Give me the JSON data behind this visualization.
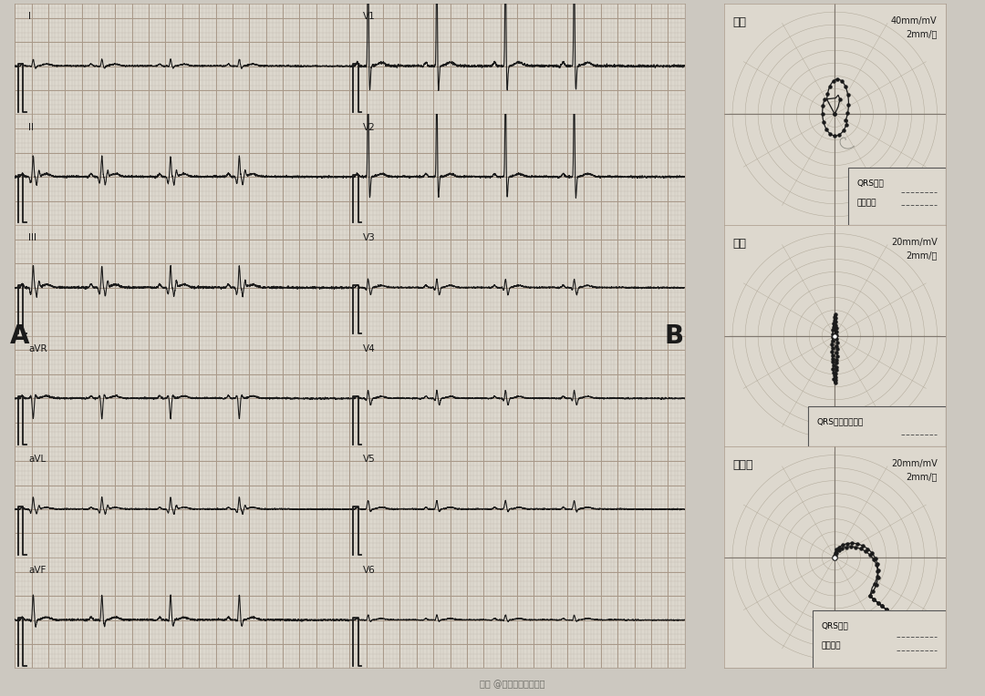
{
  "bg_color": "#d8d4cc",
  "ecg_bg": "#e8e4dc",
  "vcg_bg": "#e4e0d8",
  "grid_major_color": "#b8a898",
  "grid_minor_color": "#d4cdc5",
  "ecg_line_color": "#1a1a1a",
  "ecg_line_color2": "#666666",
  "vcg_line_color": "#1a1a1a",
  "lead_labels": [
    "I",
    "II",
    "III",
    "aVR",
    "aVL",
    "aVF"
  ],
  "chest_labels": [
    "V1",
    "V2",
    "V3",
    "V4",
    "V5",
    "V6"
  ],
  "panel_A_label": "A",
  "panel_B_label": "B",
  "vcg_panels": [
    {
      "title": "额面",
      "scale": "40mm/mV\n2mm/点"
    },
    {
      "title": "横面",
      "scale": "20mm/mV\n2mm/点"
    },
    {
      "title": "右俧面",
      "scale": "20mm/mV\n2mm/点"
    }
  ],
  "qrs_label1": "QRS环起",
  "qrs_label2": "始和终末",
  "qrs_label_h": "QRS环起始和终末",
  "qrs_label3a": "QRS环起",
  "qrs_label3b": "始和终末",
  "watermark": "知乳 @未来心脏心电交流"
}
